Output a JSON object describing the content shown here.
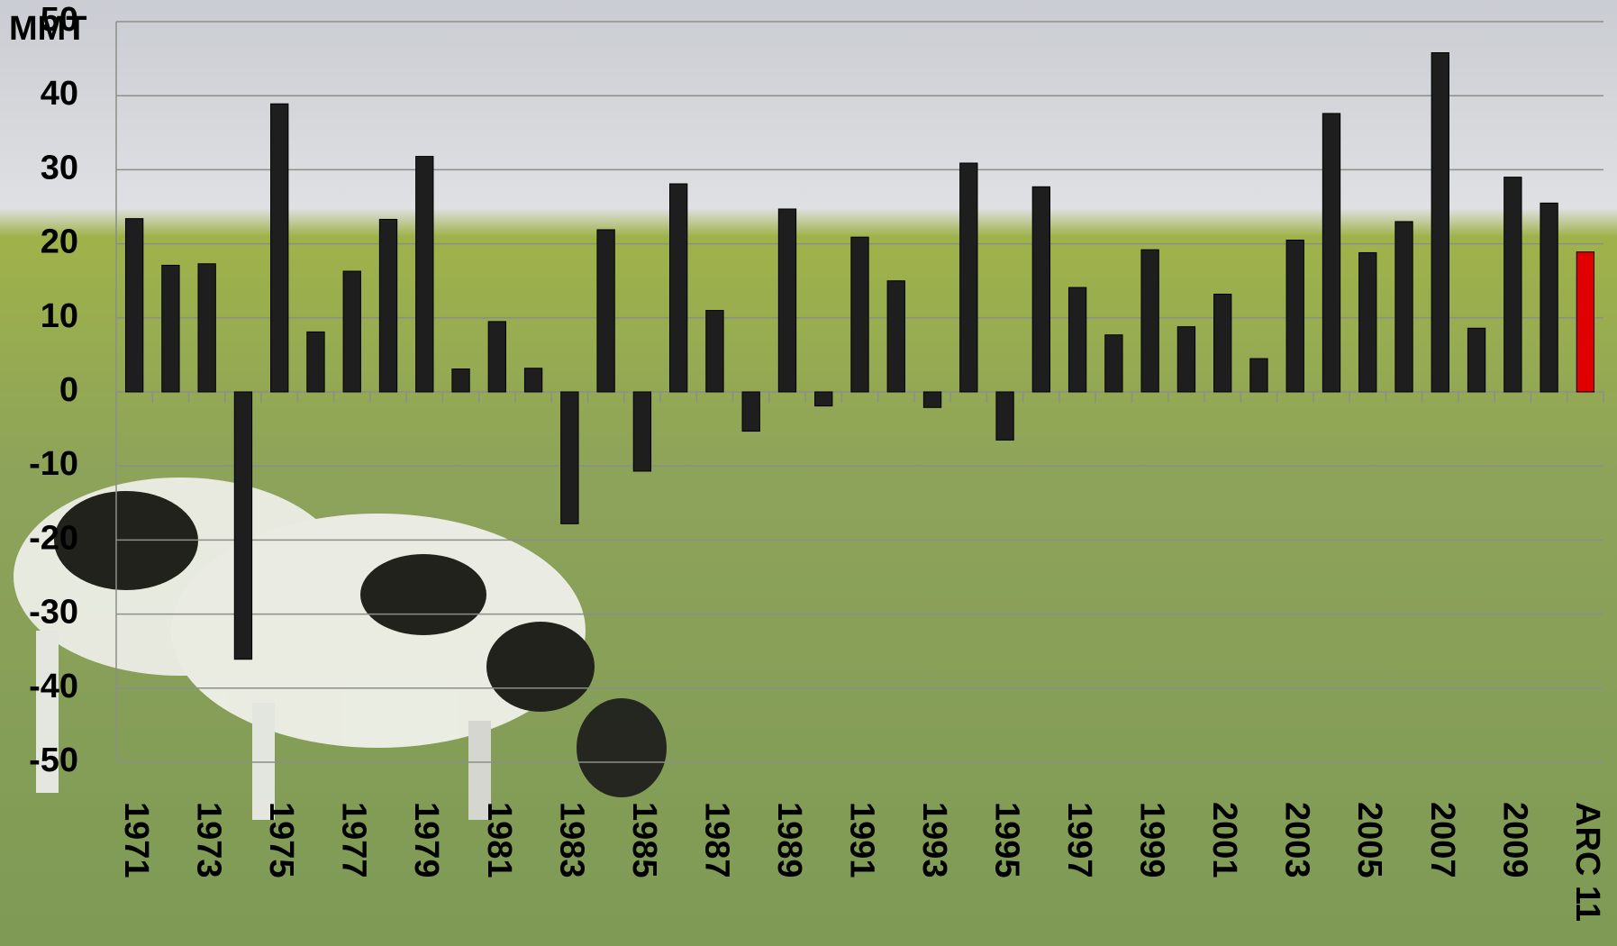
{
  "chart_data": {
    "type": "bar",
    "y_label": "MMT",
    "categories": [
      "1971",
      null,
      "1973",
      null,
      "1975",
      null,
      "1977",
      null,
      "1979",
      null,
      "1981",
      null,
      "1983",
      null,
      "1985",
      null,
      "1987",
      null,
      "1989",
      null,
      "1991",
      null,
      "1993",
      null,
      "1995",
      null,
      "1997",
      null,
      "1999",
      null,
      "2001",
      null,
      "2003",
      null,
      "2005",
      null,
      "2007",
      null,
      "2009",
      null,
      "ARC 11"
    ],
    "values": [
      23.4,
      17.1,
      17.3,
      -36.1,
      38.9,
      8.1,
      16.3,
      23.3,
      31.8,
      3.1,
      9.5,
      3.2,
      -17.8,
      21.9,
      -10.7,
      28.1,
      11.0,
      -5.3,
      24.7,
      -1.9,
      20.9,
      15.0,
      -2.1,
      30.9,
      -6.5,
      27.7,
      14.1,
      7.7,
      19.2,
      8.8,
      13.2,
      4.5,
      20.5,
      37.6,
      18.8,
      23.0,
      45.8,
      8.6,
      29.0,
      25.5,
      18.9
    ],
    "colors": [
      "#1e1e1e",
      "#1e1e1e",
      "#1e1e1e",
      "#1e1e1e",
      "#1e1e1e",
      "#1e1e1e",
      "#1e1e1e",
      "#1e1e1e",
      "#1e1e1e",
      "#1e1e1e",
      "#1e1e1e",
      "#1e1e1e",
      "#1e1e1e",
      "#1e1e1e",
      "#1e1e1e",
      "#1e1e1e",
      "#1e1e1e",
      "#1e1e1e",
      "#1e1e1e",
      "#1e1e1e",
      "#1e1e1e",
      "#1e1e1e",
      "#1e1e1e",
      "#1e1e1e",
      "#1e1e1e",
      "#1e1e1e",
      "#1e1e1e",
      "#1e1e1e",
      "#1e1e1e",
      "#1e1e1e",
      "#1e1e1e",
      "#1e1e1e",
      "#1e1e1e",
      "#1e1e1e",
      "#1e1e1e",
      "#1e1e1e",
      "#1e1e1e",
      "#1e1e1e",
      "#1e1e1e",
      "#1e1e1e",
      "#e00000"
    ],
    "ylim": [
      -50,
      50
    ],
    "yticks": [
      -50,
      -40,
      -30,
      -20,
      -10,
      0,
      10,
      20,
      30,
      40,
      50
    ],
    "grid": true
  }
}
